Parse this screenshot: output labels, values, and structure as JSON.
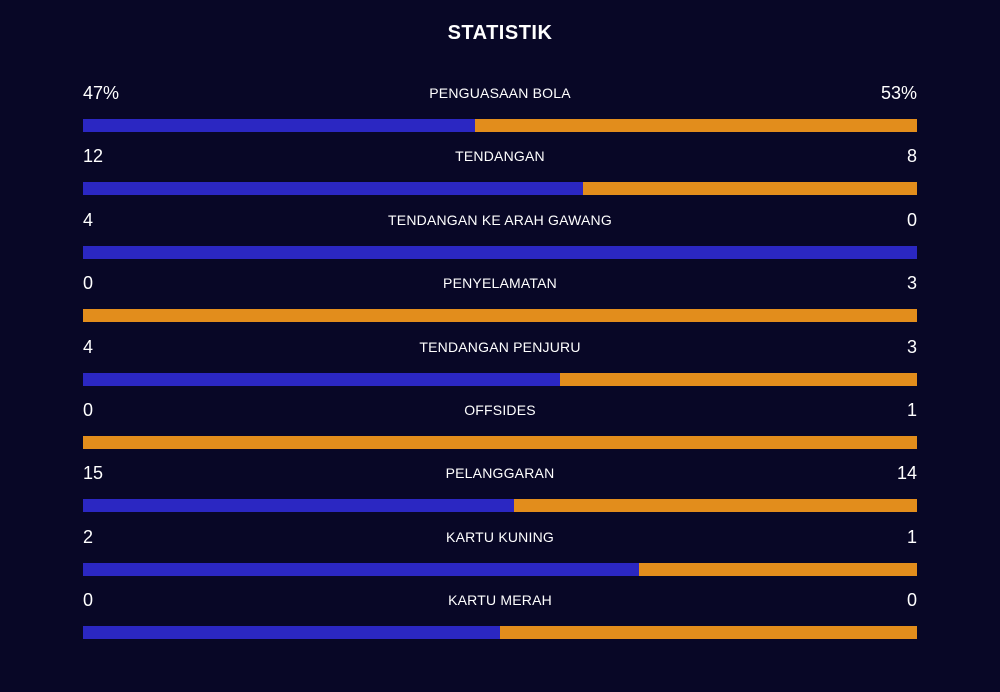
{
  "title": "STATISTIK",
  "colors": {
    "home": "#2b27c2",
    "away": "#e28d1c",
    "background": "#080726"
  },
  "chart_data": {
    "type": "bar",
    "orientation": "horizontal-stacked-comparison",
    "title": "STATISTIK",
    "categories": [
      "PENGUASAAN BOLA",
      "TENDANGAN",
      "TENDANGAN KE ARAH GAWANG",
      "PENYELAMATAN",
      "TENDANGAN PENJURU",
      "OFFSIDES",
      "PELANGGARAN",
      "KARTU KUNING",
      "KARTU MERAH"
    ],
    "series": [
      {
        "values": [
          47,
          12,
          4,
          0,
          4,
          0,
          15,
          2,
          0
        ]
      },
      {
        "values": [
          53,
          8,
          0,
          3,
          3,
          1,
          14,
          1,
          0
        ]
      }
    ],
    "display_left": [
      "47%",
      "12",
      "4",
      "0",
      "4",
      "0",
      "15",
      "2",
      "0"
    ],
    "display_right": [
      "53%",
      "8",
      "0",
      "3",
      "3",
      "1",
      "14",
      "1",
      "0"
    ]
  }
}
